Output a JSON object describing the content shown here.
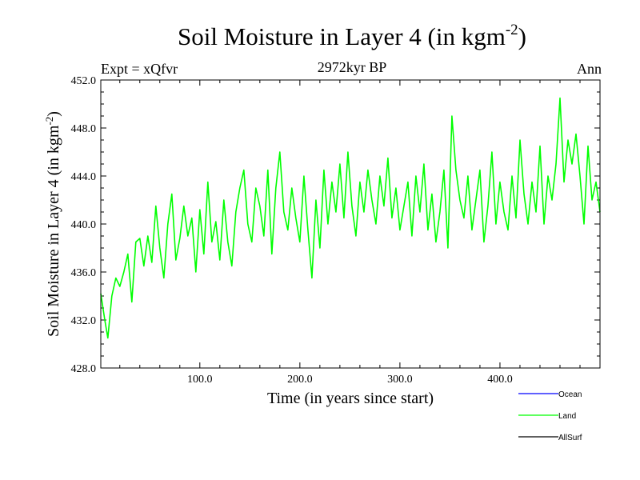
{
  "header": {
    "title_main": "Soil Moisture in Layer 4 (in kgm",
    "title_exp": "-2",
    "title_close": ")",
    "subtitle": "2972kyr BP",
    "left_label": "Expt = xQfvr",
    "right_label": "Ann"
  },
  "chart_data": {
    "type": "line",
    "title": "Soil Moisture in Layer 4 (in kgm-2)",
    "subtitle": "2972kyr BP",
    "xlabel": "Time (in years since start)",
    "ylabel_main": "Soil Moisture in Layer 4 (in kgm",
    "ylabel_exp": "-2",
    "ylabel_close": ")",
    "xlim": [
      1,
      500
    ],
    "ylim": [
      428.0,
      452.0
    ],
    "x_ticks": [
      100,
      200,
      300,
      400
    ],
    "x_tick_labels": [
      "100.0",
      "200.0",
      "300.0",
      "400.0"
    ],
    "y_ticks": [
      428,
      432,
      436,
      440,
      444,
      448,
      452
    ],
    "y_tick_labels": [
      "428.0",
      "432.0",
      "436.0",
      "440.0",
      "444.0",
      "448.0",
      "452.0"
    ],
    "legend": [
      {
        "name": "Ocean",
        "color": "#0000ff"
      },
      {
        "name": "Land",
        "color": "#00ff00"
      },
      {
        "name": "AllSurf",
        "color": "#000000"
      }
    ],
    "series": [
      {
        "name": "Land",
        "color": "#00ff00",
        "x": [
          1,
          5,
          8,
          12,
          16,
          20,
          24,
          28,
          32,
          36,
          40,
          44,
          48,
          52,
          56,
          60,
          64,
          68,
          72,
          76,
          80,
          84,
          88,
          92,
          96,
          100,
          104,
          108,
          112,
          116,
          120,
          124,
          128,
          132,
          136,
          140,
          144,
          148,
          152,
          156,
          160,
          164,
          168,
          172,
          176,
          180,
          184,
          188,
          192,
          196,
          200,
          204,
          208,
          212,
          216,
          220,
          224,
          228,
          232,
          236,
          240,
          244,
          248,
          252,
          256,
          260,
          264,
          268,
          272,
          276,
          280,
          284,
          288,
          292,
          296,
          300,
          304,
          308,
          312,
          316,
          320,
          324,
          328,
          332,
          336,
          340,
          344,
          348,
          352,
          356,
          360,
          364,
          368,
          372,
          376,
          380,
          384,
          388,
          392,
          396,
          400,
          404,
          408,
          412,
          416,
          420,
          424,
          428,
          432,
          436,
          440,
          444,
          448,
          452,
          456,
          460,
          464,
          468,
          472,
          476,
          480,
          484,
          488,
          492,
          496,
          500
        ],
        "values": [
          434.2,
          432.0,
          430.5,
          434.0,
          435.5,
          434.8,
          436.0,
          437.5,
          433.5,
          438.5,
          438.8,
          436.5,
          439.0,
          436.8,
          441.5,
          438.0,
          435.5,
          440.0,
          442.5,
          437.0,
          438.8,
          441.5,
          439.0,
          440.5,
          436.0,
          441.2,
          437.5,
          443.5,
          438.5,
          440.2,
          437.0,
          442.0,
          438.5,
          436.5,
          441.0,
          443.0,
          444.5,
          440.0,
          438.5,
          443.0,
          441.5,
          439.0,
          444.5,
          437.5,
          443.0,
          446.0,
          441.0,
          439.5,
          443.0,
          440.5,
          438.5,
          444.0,
          439.5,
          435.5,
          442.0,
          438.0,
          444.5,
          440.0,
          443.5,
          441.0,
          445.0,
          440.5,
          446.0,
          441.5,
          439.0,
          443.5,
          441.0,
          444.5,
          442.0,
          440.0,
          444.0,
          441.5,
          445.5,
          440.5,
          443.0,
          439.5,
          441.5,
          443.5,
          439.0,
          444.0,
          441.0,
          445.0,
          439.5,
          442.5,
          438.5,
          441.0,
          444.5,
          438.0,
          449.0,
          444.5,
          442.0,
          440.5,
          444.0,
          439.5,
          442.0,
          444.5,
          438.5,
          441.5,
          446.0,
          440.0,
          443.5,
          441.0,
          439.5,
          444.0,
          440.5,
          447.0,
          442.5,
          440.0,
          443.5,
          441.0,
          446.5,
          440.0,
          444.0,
          442.0,
          445.0,
          450.5,
          443.5,
          447.0,
          445.0,
          447.5,
          444.0,
          440.0,
          446.5,
          442.0,
          443.5,
          441.0
        ]
      }
    ]
  }
}
